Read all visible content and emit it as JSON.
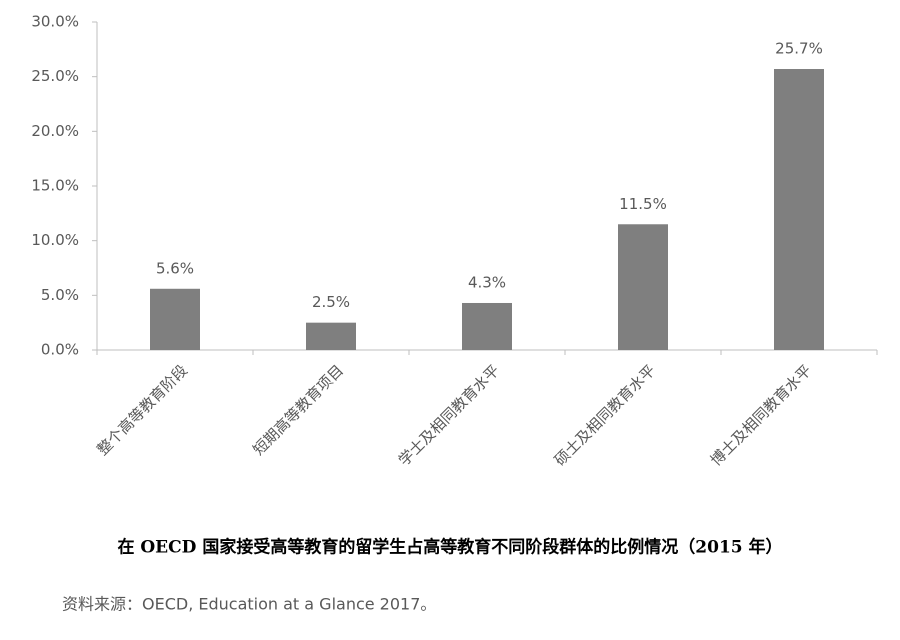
{
  "chart_data": {
    "type": "bar",
    "title": "在 OECD 国家接受高等教育的留学生占高等教育不同阶段群体的比例情况（2015 年）",
    "source": "资料来源：OECD, Education at a Glance 2017。",
    "categories": [
      "整个高等教育阶段",
      "短期高等教育项目",
      "学士及相同教育水平",
      "硕士及相同教育水平",
      "博士及相同教育水平"
    ],
    "values": [
      5.6,
      2.5,
      4.3,
      11.5,
      25.7
    ],
    "value_labels": [
      "5.6%",
      "2.5%",
      "4.3%",
      "11.5%",
      "25.7%"
    ],
    "color": "#7f7f7f",
    "ylim": [
      0,
      30
    ],
    "yticks": [
      {
        "value": 0,
        "label": "0.0%"
      },
      {
        "value": 5,
        "label": "5.0%"
      },
      {
        "value": 10,
        "label": "10.0%"
      },
      {
        "value": 15,
        "label": "15.0%"
      },
      {
        "value": 20,
        "label": "20.0%"
      },
      {
        "value": 25,
        "label": "25.0%"
      },
      {
        "value": 30,
        "label": "30.0%"
      }
    ],
    "grid": false
  }
}
